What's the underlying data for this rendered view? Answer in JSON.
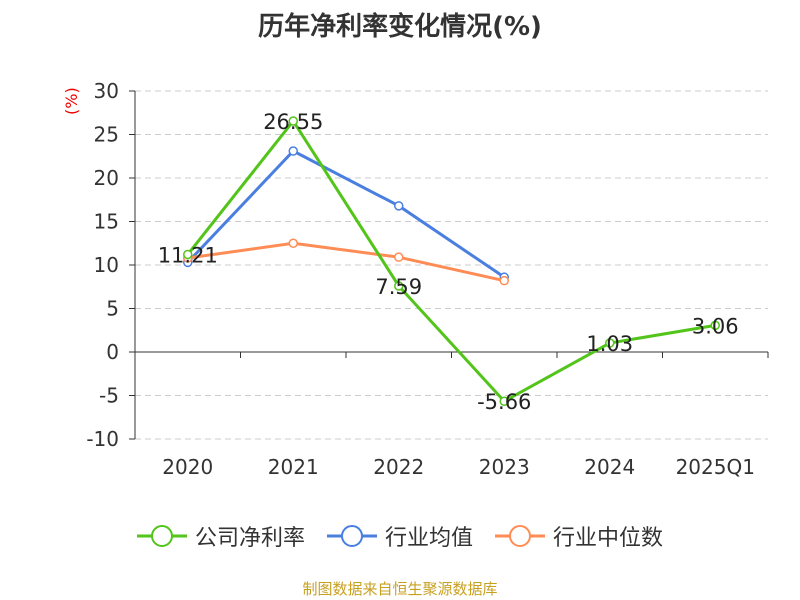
{
  "chart_data": {
    "type": "line",
    "title": "历年净利率变化情况(%)",
    "ylabel": "(%)",
    "xlabel": "",
    "categories": [
      "2020",
      "2021",
      "2022",
      "2023",
      "2024",
      "2025Q1"
    ],
    "ylim": [
      -10,
      30
    ],
    "yticks": [
      -10,
      -5,
      0,
      5,
      10,
      15,
      20,
      25,
      30
    ],
    "grid": true,
    "legend_position": "bottom",
    "series": [
      {
        "name": "公司净利率",
        "color": "#52c41a",
        "values": [
          11.21,
          26.55,
          7.59,
          -5.66,
          1.03,
          3.06
        ],
        "labels": [
          "11.21",
          "26.55",
          "7.59",
          "-5.66",
          "1.03",
          "3.06"
        ]
      },
      {
        "name": "行业均值",
        "color": "#4a7fe0",
        "values": [
          10.3,
          23.1,
          16.8,
          8.6,
          null,
          null
        ]
      },
      {
        "name": "行业中位数",
        "color": "#ff8c55",
        "values": [
          10.8,
          12.5,
          10.9,
          8.2,
          null,
          null
        ]
      }
    ]
  },
  "footer": "制图数据来自恒生聚源数据库"
}
